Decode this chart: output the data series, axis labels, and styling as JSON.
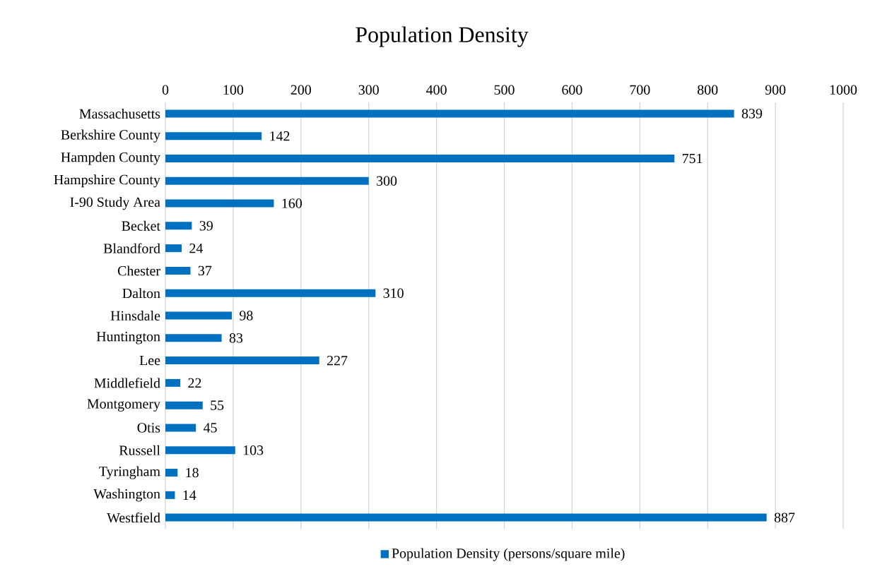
{
  "chart_data": {
    "type": "bar",
    "orientation": "horizontal",
    "title": "Population Density",
    "categories": [
      "Massachusetts",
      "Berkshire County",
      "Hampden County",
      "Hampshire County",
      "I-90 Study Area",
      "Becket",
      "Blandford",
      "Chester",
      "Dalton",
      "Hinsdale",
      "Huntington",
      "Lee",
      "Middlefield",
      "Montgomery",
      "Otis",
      "Russell",
      "Tyringham",
      "Washington",
      "Westfield"
    ],
    "series": [
      {
        "name": "Population Density (persons/square mile)",
        "color": "#0070c0",
        "values": [
          839,
          142,
          751,
          300,
          160,
          39,
          24,
          37,
          310,
          98,
          83,
          227,
          22,
          55,
          45,
          103,
          18,
          14,
          887
        ]
      }
    ],
    "xlim": [
      0,
      1000
    ],
    "xticks": [
      0,
      100,
      200,
      300,
      400,
      500,
      600,
      700,
      800,
      900,
      1000
    ],
    "grid": "x",
    "legend": "bottom",
    "data_labels": true
  }
}
